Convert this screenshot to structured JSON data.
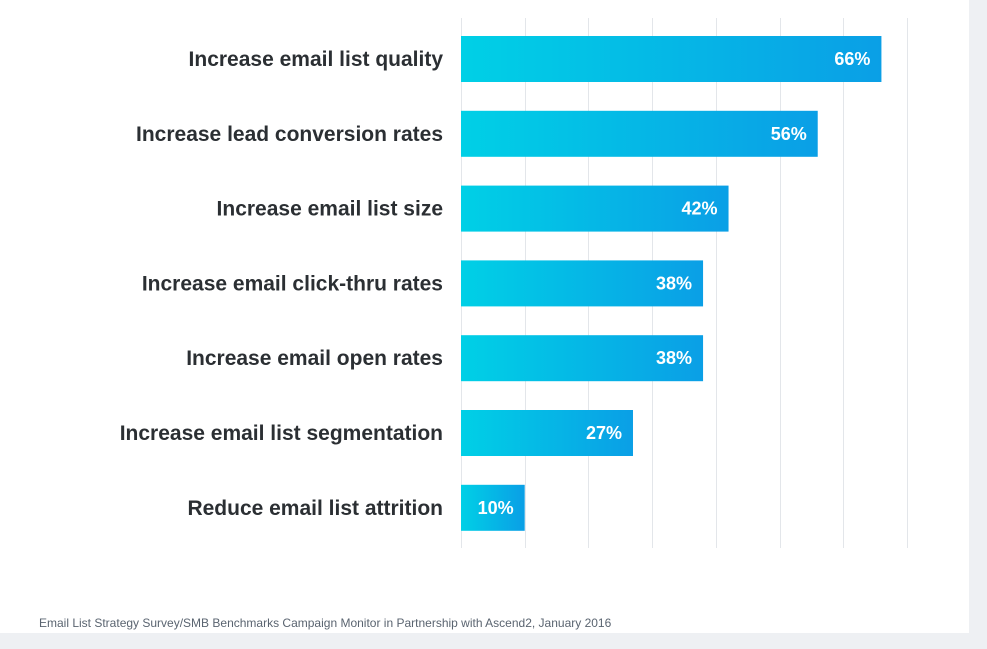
{
  "chart_data": {
    "type": "bar",
    "orientation": "horizontal",
    "categories": [
      "Increase email list quality",
      "Increase lead conversion rates",
      "Increase email list size",
      "Increase email click-thru rates",
      "Increase email open rates",
      "Increase email list segmentation",
      "Reduce email list attrition"
    ],
    "values": [
      66,
      56,
      42,
      38,
      38,
      27,
      10
    ],
    "value_labels": [
      "66%",
      "56%",
      "42%",
      "38%",
      "38%",
      "27%",
      "10%"
    ],
    "xlim": [
      0,
      70
    ],
    "grid": true,
    "title": "",
    "xlabel": "",
    "ylabel": "",
    "colors": {
      "bar_start": "#00d0e6",
      "bar_end": "#0a9fe6",
      "grid": "#e3e6ea",
      "label": "#2b2f33"
    }
  },
  "source": "Email List Strategy Survey/SMB Benchmarks Campaign Monitor in Partnership with Ascend2, January 2016"
}
